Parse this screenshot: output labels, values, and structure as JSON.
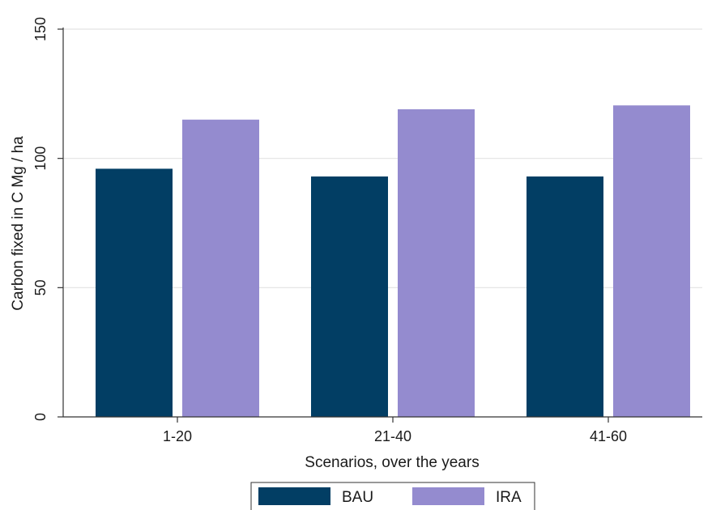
{
  "chart_data": {
    "type": "bar",
    "title": "",
    "xlabel": "Scenarios, over the years",
    "ylabel": "Carbon fixed  in C Mg / ha",
    "categories": [
      "1-20",
      "21-40",
      "41-60"
    ],
    "series": [
      {
        "name": "BAU",
        "values": [
          96,
          93,
          93
        ],
        "color": "#023e64"
      },
      {
        "name": "IRA",
        "values": [
          115,
          119,
          120.5
        ],
        "color": "#948bcf"
      }
    ],
    "ylim": [
      0,
      150
    ],
    "yticks": [
      0,
      50,
      100,
      150
    ],
    "grid": true,
    "legend_position": "bottom"
  }
}
